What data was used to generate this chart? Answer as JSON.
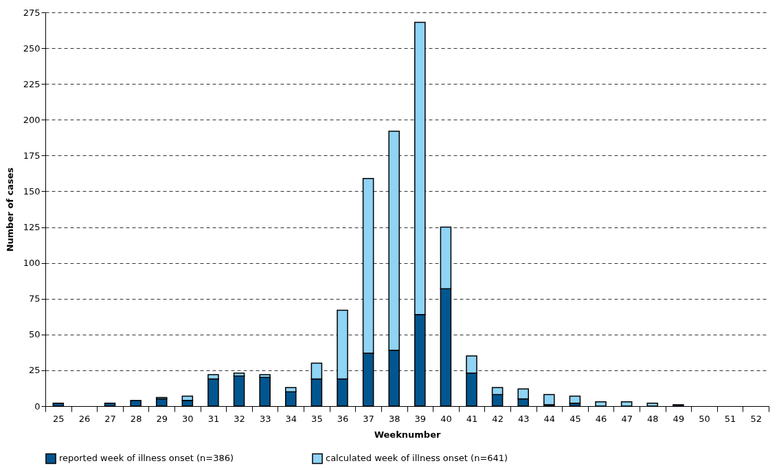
{
  "chart_data": {
    "type": "bar",
    "stacked": true,
    "xlabel": "Weeknumber",
    "ylabel": "Number of cases",
    "categories": [
      "25",
      "26",
      "27",
      "28",
      "29",
      "30",
      "31",
      "32",
      "33",
      "34",
      "35",
      "36",
      "37",
      "38",
      "39",
      "40",
      "41",
      "42",
      "43",
      "44",
      "45",
      "46",
      "47",
      "48",
      "49",
      "50",
      "51",
      "52"
    ],
    "series": [
      {
        "name": "reported week of illness onset (n=386)",
        "color": "#00568f",
        "values": [
          2,
          0,
          2,
          4,
          5,
          4,
          19,
          21,
          20,
          10,
          19,
          19,
          37,
          39,
          64,
          82,
          23,
          8,
          5,
          1,
          2,
          0,
          0,
          0,
          1,
          0,
          0,
          0
        ]
      },
      {
        "name": "calculated week of illness onset (n=641)",
        "color": "#8fd3f5",
        "values": [
          0,
          0,
          0,
          0,
          1,
          3,
          3,
          2,
          2,
          3,
          11,
          48,
          122,
          153,
          204,
          43,
          12,
          5,
          7,
          7,
          5,
          3,
          3,
          2,
          0,
          0,
          0,
          0
        ]
      }
    ],
    "ylim": [
      0,
      275
    ],
    "yticks": [
      0,
      25,
      50,
      75,
      100,
      125,
      150,
      175,
      200,
      225,
      250,
      275
    ],
    "grid": "y",
    "legend": "bottom"
  }
}
